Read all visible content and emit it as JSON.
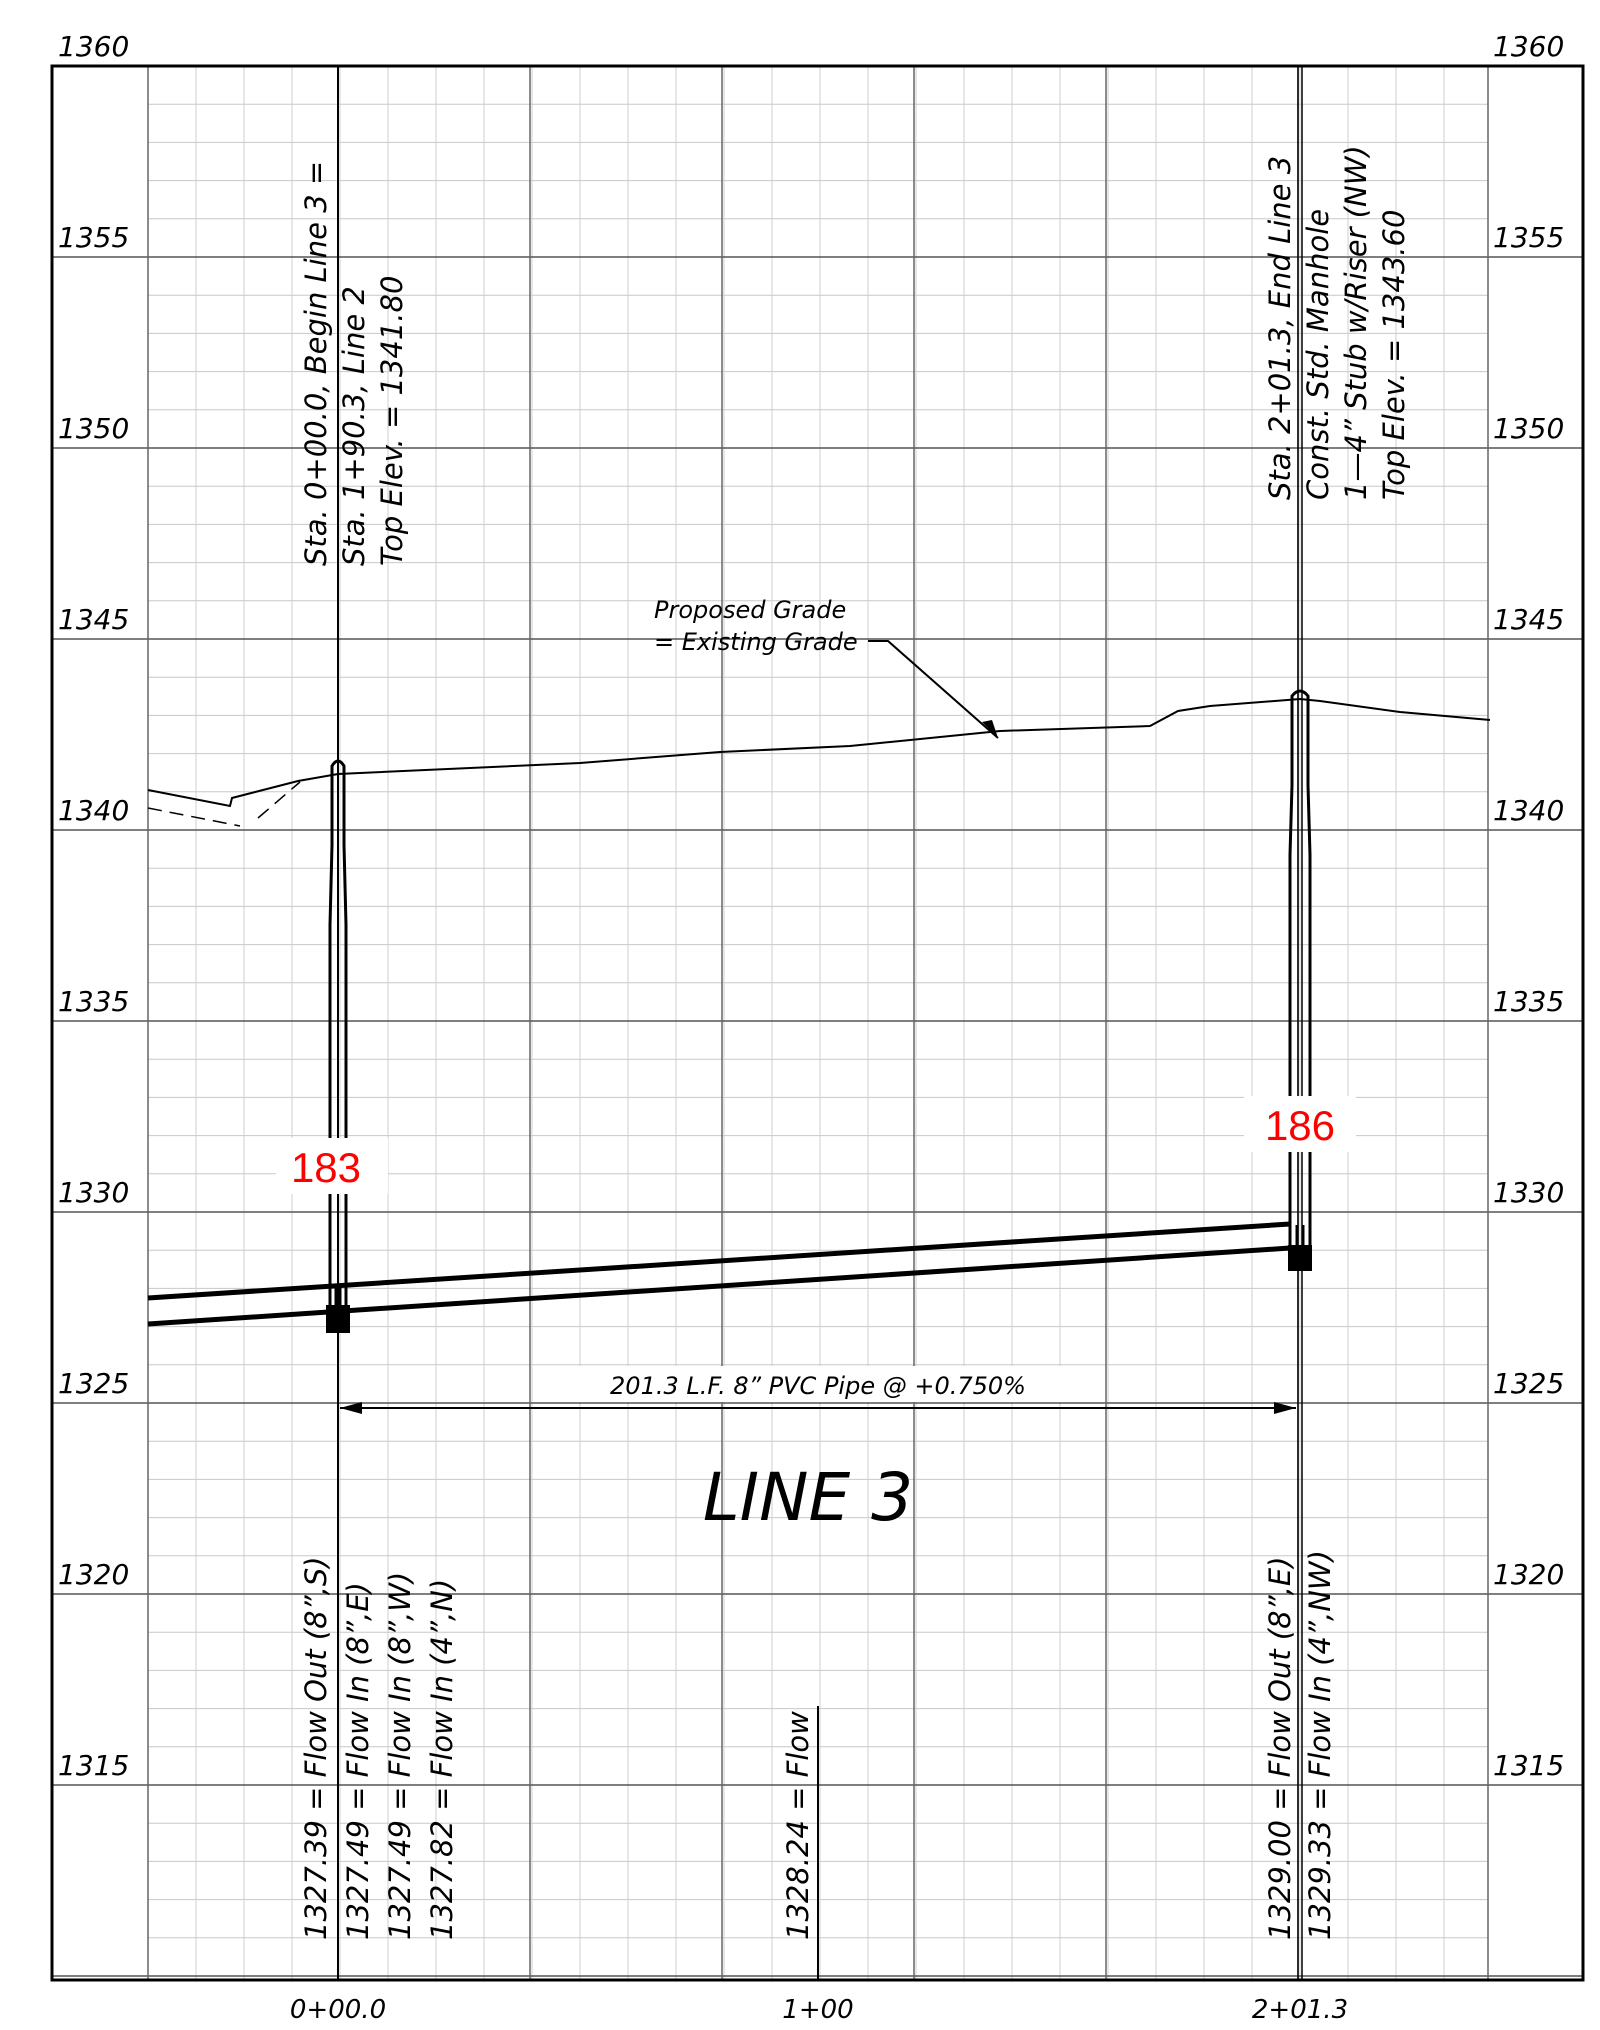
{
  "profile": {
    "title": "LINE 3",
    "elevation_labels": [
      "1360",
      "1355",
      "1350",
      "1345",
      "1340",
      "1335",
      "1330",
      "1325",
      "1320",
      "1315"
    ],
    "station_labels": [
      "0+00.0",
      "1+00",
      "2+01.3"
    ],
    "pipe_label": "201.3 L.F. 8” PVC Pipe @ +0.750%",
    "grade_note": {
      "line1": "Proposed Grade",
      "line2": "= Existing Grade"
    },
    "manhole_left": {
      "number": "183",
      "lines": [
        "Sta. 0+00.0, Begin Line 3 =",
        "Sta. 1+90.3, Line 2",
        "Top Elev. = 1341.80"
      ],
      "flows": [
        "1327.39 = Flow Out (8”,S)",
        "1327.49 = Flow In (8”,E)",
        "1327.49 = Flow In (8”,W)",
        "1327.82 = Flow In (4”,N)"
      ]
    },
    "mid_flow": "1328.24 = Flow",
    "manhole_right": {
      "number": "186",
      "lines": [
        "Sta. 2+01.3, End Line 3",
        "Const. Std. Manhole",
        "1—4” Stub w/Riser (NW)",
        "Top Elev. = 1343.60"
      ],
      "flows": [
        "1329.00 = Flow Out (8”,E)",
        "1329.33 = Flow In (4”,NW)"
      ]
    }
  }
}
